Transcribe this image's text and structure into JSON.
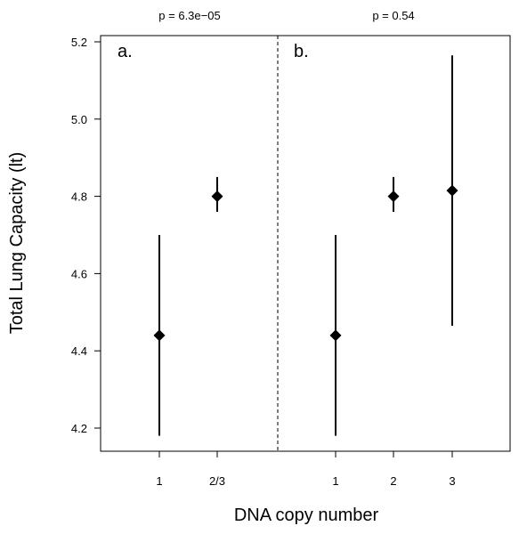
{
  "chart_data": {
    "type": "scatter",
    "subtype": "point-with-error-bars",
    "ylabel": "Total Lung Capacity (lt)",
    "xlabel": "DNA copy number",
    "ylim": [
      4.18,
      5.2
    ],
    "yticks": [
      "4.2",
      "4.4",
      "4.6",
      "4.8",
      "5.0",
      "5.2"
    ],
    "grid": false,
    "panels": [
      {
        "label": "a.",
        "pvalue": "p = 6.3e−05",
        "points": [
          {
            "x": "1",
            "y": 4.44,
            "lower": 4.18,
            "upper": 4.7
          },
          {
            "x": "2/3",
            "y": 4.8,
            "lower": 4.76,
            "upper": 4.85
          }
        ]
      },
      {
        "label": "b.",
        "pvalue": "p = 0.54",
        "points": [
          {
            "x": "1",
            "y": 4.44,
            "lower": 4.18,
            "upper": 4.7
          },
          {
            "x": "2",
            "y": 4.8,
            "lower": 4.76,
            "upper": 4.85
          },
          {
            "x": "3",
            "y": 4.815,
            "lower": 4.465,
            "upper": 5.165
          }
        ]
      }
    ],
    "divider": "dashed vertical line between panels"
  }
}
